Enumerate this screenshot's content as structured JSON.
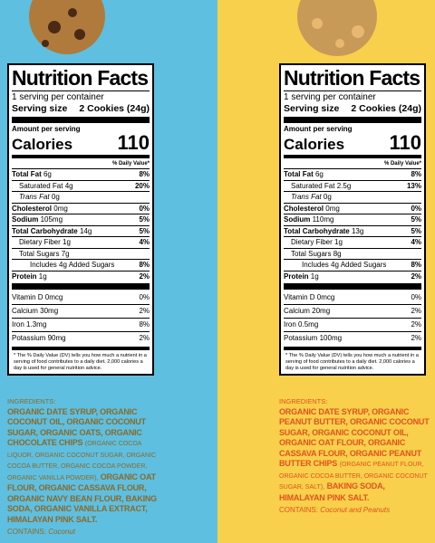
{
  "left": {
    "label": {
      "title": "Nutrition Facts",
      "servings": "1 serving per container",
      "serving_size_label": "Serving size",
      "serving_size_value": "2 Cookies (24g)",
      "amount_per_serving": "Amount per serving",
      "calories_label": "Calories",
      "calories_value": "110",
      "dv_header": "% Daily Value*",
      "rows": [
        {
          "name": "Total Fat",
          "amount": "6g",
          "dv": "8%"
        },
        {
          "name": "Saturated Fat",
          "amount": "4g",
          "dv": "20%"
        },
        {
          "name": "Trans Fat",
          "amount": "0g"
        },
        {
          "name": "Cholesterol",
          "amount": "0mg",
          "dv": "0%"
        },
        {
          "name": "Sodium",
          "amount": "105mg",
          "dv": "5%"
        },
        {
          "name": "Total Carbohydrate",
          "amount": "14g",
          "dv": "5%"
        },
        {
          "name": "Dietary Fiber",
          "amount": "1g",
          "dv": "4%"
        },
        {
          "name": "Total Sugars",
          "amount": "7g"
        },
        {
          "name": "Includes 4g Added Sugars",
          "dv": "8%"
        },
        {
          "name": "Protein",
          "amount": "1g",
          "dv": "2%"
        }
      ],
      "vitamins": [
        {
          "name": "Vitamin D",
          "amount": "0mcg",
          "dv": "0%"
        },
        {
          "name": "Calcium",
          "amount": "30mg",
          "dv": "2%"
        },
        {
          "name": "Iron",
          "amount": "1.3mg",
          "dv": "8%"
        },
        {
          "name": "Potassium",
          "amount": "90mg",
          "dv": "2%"
        }
      ],
      "footnote": "* The % Daily Value (DV) tells you how much a nutrient in a serving of food contributes to a daily diet. 2,000 calories a day is used for general nutrition advice."
    },
    "ingredients": {
      "heading": "INGREDIENTS:",
      "segments": [
        "ORGANIC DATE SYRUP, ORGANIC COCONUT OIL, ORGANIC COCONUT SUGAR, ORGANIC OATS, ORGANIC CHOCOLATE CHIPS",
        "(ORGANIC COCOA LIQUOR, ORGANIC COCONUT SUGAR, ORGANIC COCOA BUTTER, ORGANIC COCOA POWDER, ORGANIC VANILLA POWDER),",
        "ORGANIC OAT FLOUR, ORGANIC CASSAVA FLOUR, ORGANIC NAVY BEAN FLOUR, BAKING SODA, ORGANIC VANILLA EXTRACT, HIMALAYAN PINK SALT."
      ]
    },
    "contains": {
      "label": "CONTAINS:",
      "value": "Coconut"
    }
  },
  "right": {
    "label": {
      "title": "Nutrition Facts",
      "servings": "1 serving per container",
      "serving_size_label": "Serving size",
      "serving_size_value": "2 Cookies (24g)",
      "amount_per_serving": "Amount per serving",
      "calories_label": "Calories",
      "calories_value": "110",
      "dv_header": "% Daily Value*",
      "rows": [
        {
          "name": "Total Fat",
          "amount": "6g",
          "dv": "8%"
        },
        {
          "name": "Saturated Fat",
          "amount": "2.5g",
          "dv": "13%"
        },
        {
          "name": "Trans Fat",
          "amount": "0g"
        },
        {
          "name": "Cholesterol",
          "amount": "0mg",
          "dv": "0%"
        },
        {
          "name": "Sodium",
          "amount": "110mg",
          "dv": "5%"
        },
        {
          "name": "Total Carbohydrate",
          "amount": "13g",
          "dv": "5%"
        },
        {
          "name": "Dietary Fiber",
          "amount": "1g",
          "dv": "4%"
        },
        {
          "name": "Total Sugars",
          "amount": "8g"
        },
        {
          "name": "Includes 4g Added Sugars",
          "dv": "8%"
        },
        {
          "name": "Protein",
          "amount": "1g",
          "dv": "2%"
        }
      ],
      "vitamins": [
        {
          "name": "Vitamin D",
          "amount": "0mcg",
          "dv": "0%"
        },
        {
          "name": "Calcium",
          "amount": "20mg",
          "dv": "2%"
        },
        {
          "name": "Iron",
          "amount": "0.5mg",
          "dv": "2%"
        },
        {
          "name": "Potassium",
          "amount": "100mg",
          "dv": "2%"
        }
      ],
      "footnote": "* The % Daily Value (DV) tells you how much a nutrient in a serving of food contributes to a daily diet. 2,000 calories a day is used for general nutrition advice."
    },
    "ingredients": {
      "heading": "INGREDIENTS:",
      "segments": [
        "ORGANIC DATE SYRUP, ORGANIC PEANUT BUTTER, ORGANIC COCONUT SUGAR, ORGANIC COCONUT OIL, ORGANIC OAT FLOUR, ORGANIC CASSAVA FLOUR, ORGANIC PEANUT BUTTER CHIPS",
        "(ORGANIC PEANUT FLOUR, ORGANIC COCOA BUTTER, ORGANIC COCONUT SUGAR, SALT),",
        "BAKING SODA, HIMALAYAN PINK SALT."
      ]
    },
    "contains": {
      "label": "CONTAINS:",
      "value": "Coconut and Peanuts"
    }
  }
}
